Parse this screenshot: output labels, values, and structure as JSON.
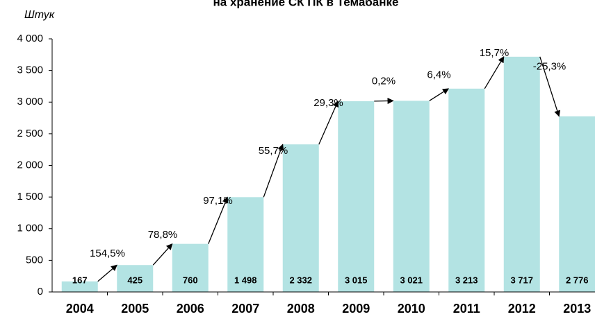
{
  "chart_data": {
    "type": "bar",
    "title": "на хранение СК ПК в Темабанке",
    "y_label": "Штук",
    "categories": [
      "2004",
      "2005",
      "2006",
      "2007",
      "2008",
      "2009",
      "2010",
      "2011",
      "2012",
      "2013"
    ],
    "values": [
      167,
      425,
      760,
      1498,
      2332,
      3015,
      3021,
      3213,
      3717,
      2776
    ],
    "value_labels": [
      "167",
      "425",
      "760",
      "1 498",
      "2 332",
      "3 015",
      "3 021",
      "3 213",
      "3 717",
      "2 776"
    ],
    "color": "#b3e3e3",
    "growth": {
      "values": [
        154.5,
        78.8,
        97.1,
        55.7,
        29.3,
        0.2,
        6.4,
        15.7,
        -25.3
      ],
      "value_labels": [
        "154,5%",
        "78,8%",
        "97,1%",
        "55,7%",
        "29,3%",
        "0,2%",
        "6,4%",
        "15,7%",
        "-25,3%"
      ]
    },
    "ylim": [
      0,
      4000
    ],
    "yticks": [
      0,
      500,
      {
        "value": 1000,
        "label": "1 000"
      },
      {
        "value": 1500,
        "label": "1 500"
      },
      {
        "value": 2000,
        "label": "2 000"
      },
      {
        "value": 2500,
        "label": "2 500"
      },
      {
        "value": 3000,
        "label": "3 000"
      },
      {
        "value": 3500,
        "label": "3 500"
      },
      {
        "value": 4000,
        "label": "4 000"
      }
    ],
    "grid": false
  }
}
